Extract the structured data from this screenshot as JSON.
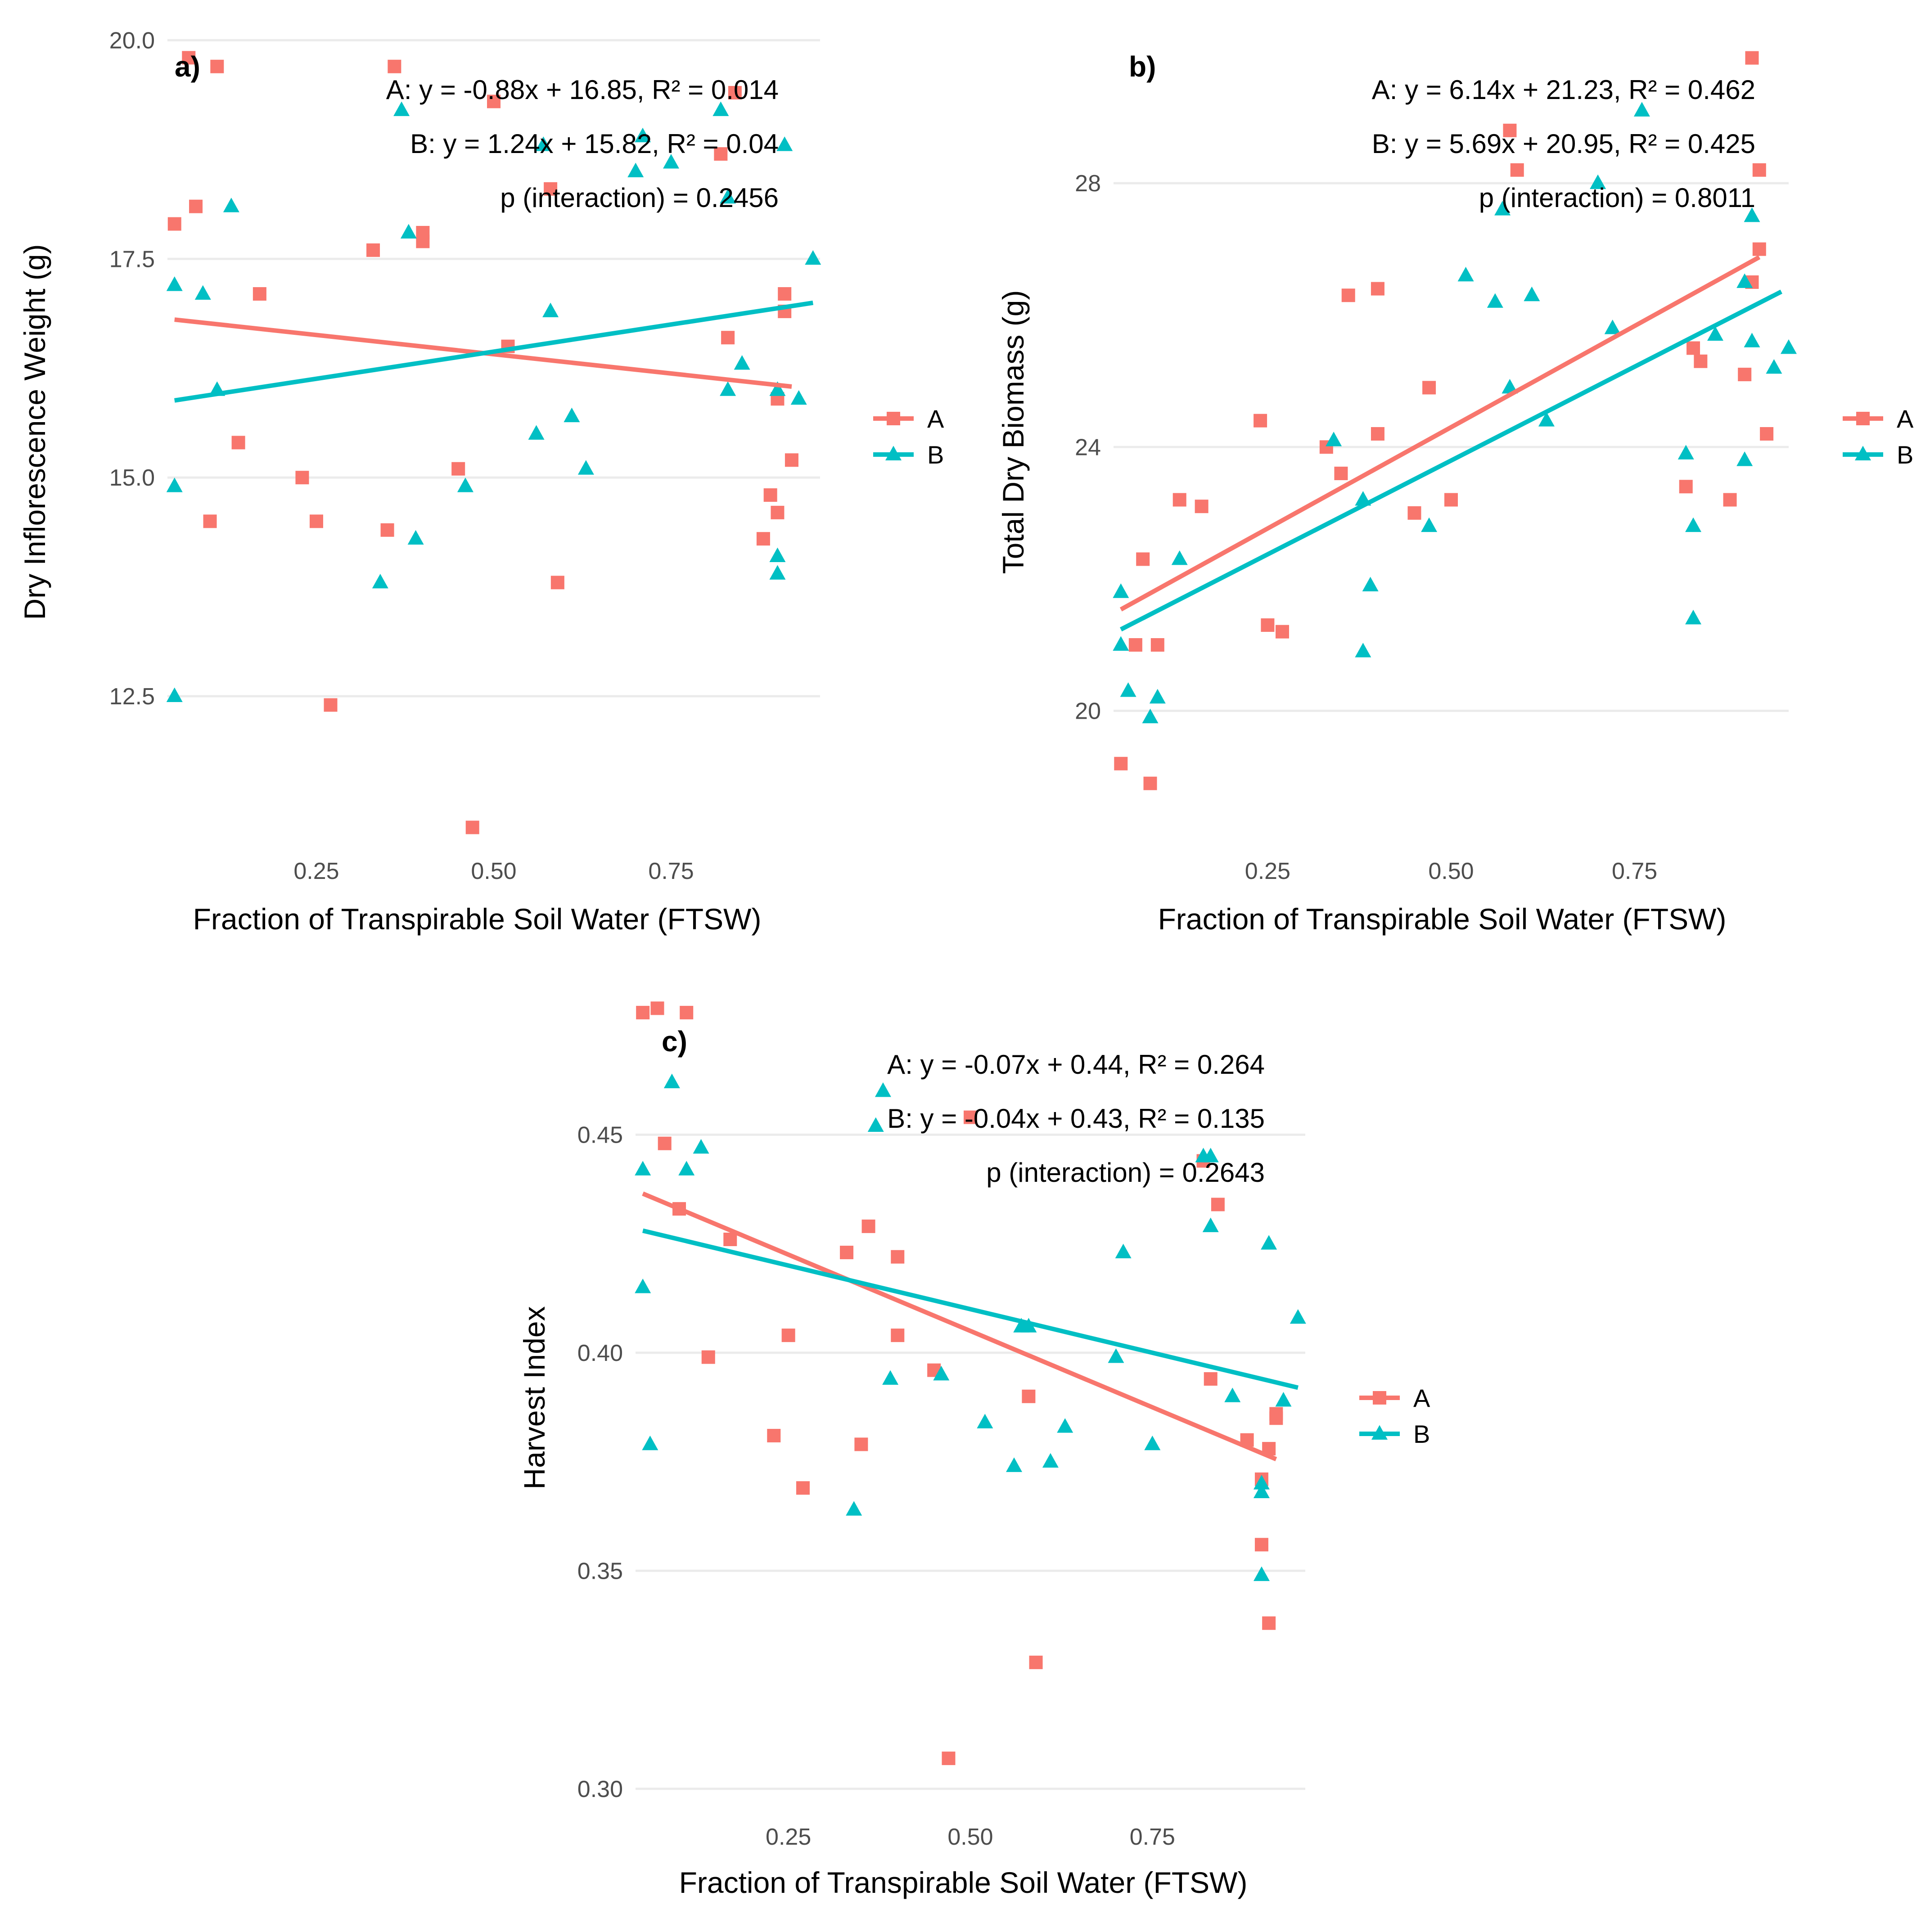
{
  "colors": {
    "A": "#F8766D",
    "B": "#00BFC4"
  },
  "legend": [
    "A",
    "B"
  ],
  "chart_data": [
    {
      "type": "scatter",
      "label": "a)",
      "xlabel": "Fraction of Transpirable Soil Water (FTSW)",
      "ylabel": "Dry Inflorescence Weight (g)",
      "xlim": [
        0.04,
        0.96
      ],
      "ylim": [
        10.9,
        20.1
      ],
      "xticks": [
        "0.25",
        "0.50",
        "0.75"
      ],
      "yticks": [
        "12.5",
        "15.0",
        "17.5",
        "20.0"
      ],
      "annotations": [
        "A: y = -0.88x + 16.85, R² = 0.014",
        "B: y = 1.24x + 15.82, R² = 0.04",
        "p (interaction) = 0.2456"
      ],
      "series": [
        {
          "name": "A",
          "fit": {
            "slope": -0.88,
            "intercept": 16.85,
            "x_range": [
              0.05,
              0.92
            ]
          },
          "points": [
            [
              0.05,
              17.9
            ],
            [
              0.07,
              19.8
            ],
            [
              0.08,
              18.1
            ],
            [
              0.1,
              14.5
            ],
            [
              0.11,
              19.7
            ],
            [
              0.14,
              15.4
            ],
            [
              0.17,
              17.1
            ],
            [
              0.23,
              15.0
            ],
            [
              0.25,
              14.5
            ],
            [
              0.27,
              12.4
            ],
            [
              0.33,
              17.6
            ],
            [
              0.35,
              14.4
            ],
            [
              0.36,
              19.7
            ],
            [
              0.4,
              17.8
            ],
            [
              0.4,
              17.7
            ],
            [
              0.45,
              15.1
            ],
            [
              0.47,
              11.0
            ],
            [
              0.5,
              19.3
            ],
            [
              0.52,
              16.5
            ],
            [
              0.58,
              18.3
            ],
            [
              0.59,
              13.8
            ],
            [
              0.82,
              18.7
            ],
            [
              0.83,
              16.6
            ],
            [
              0.84,
              19.4
            ],
            [
              0.88,
              14.3
            ],
            [
              0.89,
              14.8
            ],
            [
              0.9,
              14.6
            ],
            [
              0.9,
              15.9
            ],
            [
              0.91,
              17.1
            ],
            [
              0.91,
              16.9
            ],
            [
              0.92,
              15.2
            ]
          ]
        },
        {
          "name": "B",
          "fit": {
            "slope": 1.24,
            "intercept": 15.82,
            "x_range": [
              0.05,
              0.95
            ]
          },
          "points": [
            [
              0.05,
              14.9
            ],
            [
              0.05,
              17.2
            ],
            [
              0.05,
              12.5
            ],
            [
              0.09,
              17.1
            ],
            [
              0.11,
              16.0
            ],
            [
              0.13,
              18.1
            ],
            [
              0.34,
              13.8
            ],
            [
              0.37,
              19.2
            ],
            [
              0.38,
              17.8
            ],
            [
              0.39,
              14.3
            ],
            [
              0.46,
              14.9
            ],
            [
              0.56,
              15.5
            ],
            [
              0.57,
              18.8
            ],
            [
              0.58,
              16.9
            ],
            [
              0.61,
              15.7
            ],
            [
              0.63,
              15.1
            ],
            [
              0.7,
              18.5
            ],
            [
              0.71,
              18.9
            ],
            [
              0.75,
              18.6
            ],
            [
              0.82,
              19.2
            ],
            [
              0.83,
              16.0
            ],
            [
              0.83,
              18.2
            ],
            [
              0.85,
              16.3
            ],
            [
              0.9,
              16.0
            ],
            [
              0.9,
              14.1
            ],
            [
              0.9,
              13.9
            ],
            [
              0.91,
              18.8
            ],
            [
              0.93,
              15.9
            ],
            [
              0.95,
              17.5
            ]
          ]
        }
      ]
    },
    {
      "type": "scatter",
      "label": "b)",
      "xlabel": "Fraction of Transpirable Soil Water (FTSW)",
      "ylabel": "Total Dry Biomass (g)",
      "xlim": [
        0.04,
        0.96
      ],
      "ylim": [
        18.1,
        30.3
      ],
      "xticks": [
        "0.25",
        "0.50",
        "0.75"
      ],
      "yticks": [
        "20",
        "24",
        "28"
      ],
      "annotations": [
        "A: y = 6.14x + 21.23, R² = 0.462",
        "B: y = 5.69x + 20.95, R² = 0.425",
        "p (interaction) = 0.8011"
      ],
      "series": [
        {
          "name": "A",
          "fit": {
            "slope": 6.14,
            "intercept": 21.23,
            "x_range": [
              0.05,
              0.92
            ]
          },
          "points": [
            [
              0.05,
              19.2
            ],
            [
              0.07,
              21.0
            ],
            [
              0.08,
              22.3
            ],
            [
              0.09,
              18.9
            ],
            [
              0.1,
              21.0
            ],
            [
              0.13,
              23.2
            ],
            [
              0.16,
              23.1
            ],
            [
              0.24,
              24.4
            ],
            [
              0.25,
              21.3
            ],
            [
              0.27,
              21.2
            ],
            [
              0.33,
              24.0
            ],
            [
              0.35,
              23.6
            ],
            [
              0.36,
              26.3
            ],
            [
              0.4,
              24.2
            ],
            [
              0.4,
              26.4
            ],
            [
              0.45,
              23.0
            ],
            [
              0.47,
              24.9
            ],
            [
              0.5,
              23.2
            ],
            [
              0.58,
              28.8
            ],
            [
              0.59,
              28.2
            ],
            [
              0.82,
              23.4
            ],
            [
              0.83,
              25.5
            ],
            [
              0.84,
              25.3
            ],
            [
              0.88,
              23.2
            ],
            [
              0.9,
              25.1
            ],
            [
              0.91,
              26.5
            ],
            [
              0.91,
              29.9
            ],
            [
              0.92,
              28.2
            ],
            [
              0.92,
              27.0
            ],
            [
              0.93,
              24.2
            ]
          ]
        },
        {
          "name": "B",
          "fit": {
            "slope": 5.69,
            "intercept": 20.95,
            "x_range": [
              0.05,
              0.95
            ]
          },
          "points": [
            [
              0.05,
              21.0
            ],
            [
              0.05,
              21.8
            ],
            [
              0.06,
              20.3
            ],
            [
              0.09,
              19.9
            ],
            [
              0.1,
              20.2
            ],
            [
              0.13,
              22.3
            ],
            [
              0.34,
              24.1
            ],
            [
              0.38,
              23.2
            ],
            [
              0.38,
              20.9
            ],
            [
              0.39,
              21.9
            ],
            [
              0.47,
              22.8
            ],
            [
              0.52,
              26.6
            ],
            [
              0.56,
              26.2
            ],
            [
              0.57,
              27.6
            ],
            [
              0.58,
              24.9
            ],
            [
              0.61,
              26.3
            ],
            [
              0.63,
              24.4
            ],
            [
              0.7,
              28.0
            ],
            [
              0.72,
              25.8
            ],
            [
              0.76,
              29.1
            ],
            [
              0.82,
              23.9
            ],
            [
              0.83,
              22.8
            ],
            [
              0.83,
              21.4
            ],
            [
              0.86,
              25.7
            ],
            [
              0.9,
              26.5
            ],
            [
              0.9,
              23.8
            ],
            [
              0.91,
              25.6
            ],
            [
              0.91,
              27.5
            ],
            [
              0.94,
              25.2
            ],
            [
              0.96,
              25.5
            ]
          ]
        }
      ]
    },
    {
      "type": "scatter",
      "label": "c)",
      "xlabel": "Fraction of Transpirable Soil Water (FTSW)",
      "ylabel": "Harvest Index",
      "xlim": [
        0.04,
        0.96
      ],
      "ylim": [
        0.297,
        0.481
      ],
      "xticks": [
        "0.25",
        "0.50",
        "0.75"
      ],
      "yticks": [
        "0.30",
        "0.35",
        "0.40",
        "0.45"
      ],
      "annotations": [
        "A: y = -0.07x + 0.44, R² = 0.264",
        "B: y = -0.04x + 0.43, R² = 0.135",
        "p (interaction) = 0.2643"
      ],
      "series": [
        {
          "name": "A",
          "fit": {
            "slope": -0.07,
            "intercept": 0.44,
            "x_range": [
              0.05,
              0.92
            ]
          },
          "points": [
            [
              0.05,
              0.478
            ],
            [
              0.07,
              0.479
            ],
            [
              0.08,
              0.448
            ],
            [
              0.1,
              0.433
            ],
            [
              0.11,
              0.478
            ],
            [
              0.14,
              0.399
            ],
            [
              0.17,
              0.426
            ],
            [
              0.23,
              0.381
            ],
            [
              0.25,
              0.404
            ],
            [
              0.27,
              0.369
            ],
            [
              0.33,
              0.423
            ],
            [
              0.35,
              0.379
            ],
            [
              0.36,
              0.429
            ],
            [
              0.4,
              0.404
            ],
            [
              0.4,
              0.422
            ],
            [
              0.45,
              0.396
            ],
            [
              0.47,
              0.307
            ],
            [
              0.5,
              0.454
            ],
            [
              0.58,
              0.39
            ],
            [
              0.59,
              0.329
            ],
            [
              0.82,
              0.444
            ],
            [
              0.83,
              0.394
            ],
            [
              0.84,
              0.434
            ],
            [
              0.88,
              0.38
            ],
            [
              0.9,
              0.371
            ],
            [
              0.9,
              0.356
            ],
            [
              0.91,
              0.338
            ],
            [
              0.91,
              0.378
            ],
            [
              0.92,
              0.385
            ],
            [
              0.92,
              0.386
            ]
          ]
        },
        {
          "name": "B",
          "fit": {
            "slope": -0.04,
            "intercept": 0.43,
            "x_range": [
              0.05,
              0.95
            ]
          },
          "points": [
            [
              0.05,
              0.442
            ],
            [
              0.05,
              0.415
            ],
            [
              0.06,
              0.379
            ],
            [
              0.09,
              0.462
            ],
            [
              0.11,
              0.442
            ],
            [
              0.13,
              0.447
            ],
            [
              0.34,
              0.364
            ],
            [
              0.37,
              0.452
            ],
            [
              0.38,
              0.46
            ],
            [
              0.39,
              0.394
            ],
            [
              0.46,
              0.395
            ],
            [
              0.52,
              0.384
            ],
            [
              0.56,
              0.374
            ],
            [
              0.57,
              0.406
            ],
            [
              0.58,
              0.406
            ],
            [
              0.61,
              0.375
            ],
            [
              0.63,
              0.383
            ],
            [
              0.7,
              0.399
            ],
            [
              0.71,
              0.423
            ],
            [
              0.75,
              0.379
            ],
            [
              0.82,
              0.445
            ],
            [
              0.83,
              0.445
            ],
            [
              0.83,
              0.429
            ],
            [
              0.86,
              0.39
            ],
            [
              0.9,
              0.37
            ],
            [
              0.9,
              0.368
            ],
            [
              0.9,
              0.349
            ],
            [
              0.91,
              0.425
            ],
            [
              0.93,
              0.389
            ],
            [
              0.95,
              0.408
            ]
          ]
        }
      ]
    }
  ]
}
